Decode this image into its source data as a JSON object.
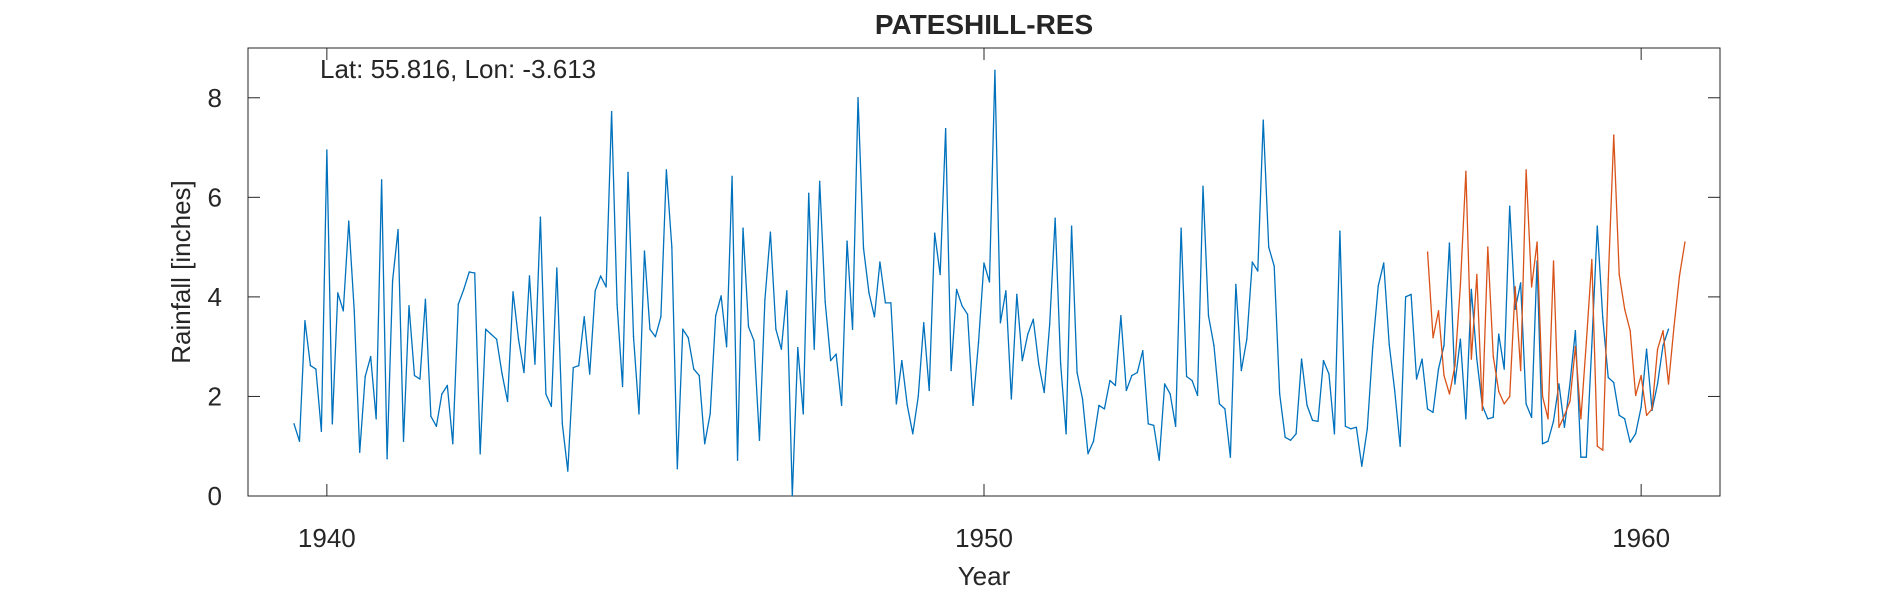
{
  "chart_data": {
    "type": "line",
    "title": "PATESHILL-RES",
    "annotation": "Lat: 55.816, Lon: -3.613",
    "xlabel": "Year",
    "ylabel": "Rainfall [inches]",
    "xlim": [
      1938.8,
      1961.2
    ],
    "ylim": [
      0,
      9.0
    ],
    "xticks": [
      1940,
      1950,
      1960
    ],
    "xtick_labels": [
      "1940",
      "1950",
      "1960"
    ],
    "yticks": [
      0,
      2,
      4,
      6,
      8
    ],
    "ytick_labels": [
      "0",
      "2",
      "4",
      "6",
      "8"
    ],
    "grid": false,
    "legend": "none",
    "series": [
      {
        "color": "#0072BD",
        "x_start": 1939.5,
        "x_step": 0.08333,
        "values": [
          1.45,
          1.1,
          3.52,
          2.62,
          2.55,
          1.3,
          6.95,
          1.45,
          4.08,
          3.72,
          5.52,
          3.72,
          0.88,
          2.4,
          2.8,
          1.55,
          6.35,
          0.75,
          4.32,
          5.35,
          1.1,
          3.82,
          2.42,
          2.35,
          3.95,
          1.6,
          1.4,
          2.05,
          2.22,
          1.05,
          3.85,
          4.15,
          4.5,
          4.48,
          0.85,
          3.35,
          3.25,
          3.15,
          2.45,
          1.9,
          4.1,
          3.15,
          2.48,
          4.42,
          2.65,
          5.6,
          2.05,
          1.8,
          4.58,
          1.45,
          0.5,
          2.58,
          2.62,
          3.6,
          2.45,
          4.12,
          4.42,
          4.2,
          7.72,
          3.85,
          2.2,
          6.5,
          3.2,
          1.65,
          4.92,
          3.35,
          3.2,
          3.6,
          6.55,
          5.0,
          0.55,
          3.35,
          3.18,
          2.55,
          2.42,
          1.05,
          1.65,
          3.62,
          4.02,
          3.0,
          6.42,
          0.72,
          5.38,
          3.4,
          3.12,
          1.12,
          3.95,
          5.3,
          3.35,
          2.95,
          4.12,
          0.0,
          2.98,
          1.65,
          6.08,
          2.95,
          6.32,
          3.9,
          2.72,
          2.85,
          1.82,
          5.12,
          3.35,
          8.0,
          4.98,
          4.08,
          3.6,
          4.7,
          3.88,
          3.88,
          1.85,
          2.72,
          1.82,
          1.25,
          2.0,
          3.48,
          2.12,
          5.28,
          4.45,
          7.38,
          2.52,
          4.15,
          3.82,
          3.65,
          1.82,
          3.08,
          4.68,
          4.3,
          8.55,
          3.48,
          4.12,
          1.95,
          4.05,
          2.72,
          3.25,
          3.55,
          2.65,
          2.08,
          3.45,
          5.58,
          2.65,
          1.25,
          5.42,
          2.48,
          1.95,
          0.85,
          1.1,
          1.82,
          1.75,
          2.32,
          2.22,
          3.62,
          2.12,
          2.42,
          2.48,
          2.92,
          1.45,
          1.42,
          0.72,
          2.25,
          2.05,
          1.4,
          5.38,
          2.4,
          2.32,
          2.02,
          6.22,
          3.62,
          3.02,
          1.85,
          1.75,
          0.78,
          4.25,
          2.52,
          3.15,
          4.7,
          4.52,
          7.55,
          5.0,
          4.62,
          2.05,
          1.18,
          1.12,
          1.25,
          2.75,
          1.82,
          1.52,
          1.5,
          2.72,
          2.45,
          1.25,
          5.32,
          1.4,
          1.35,
          1.38,
          0.6,
          1.35,
          3.0,
          4.22,
          4.68,
          3.05,
          2.12,
          1.0,
          4.0,
          4.05,
          2.35,
          2.75,
          1.75,
          1.68,
          2.55,
          3.02,
          5.08,
          2.25,
          3.15,
          1.55,
          4.15,
          2.75,
          1.82,
          1.55,
          1.58,
          3.25,
          2.55,
          5.82,
          3.75,
          4.28,
          1.85,
          1.58,
          4.72,
          1.05,
          1.1,
          1.5,
          2.25,
          1.38,
          2.25,
          3.32,
          0.78,
          0.78,
          3.02,
          5.42,
          3.58,
          2.38,
          2.28,
          1.62,
          1.55,
          1.08,
          1.25,
          1.78,
          2.95,
          1.72,
          2.25,
          3.02,
          3.35
        ]
      },
      {
        "color": "#D95319",
        "x_start": 1956.75,
        "x_step": 0.08333,
        "values": [
          4.9,
          3.18,
          3.72,
          2.42,
          2.05,
          2.62,
          4.25,
          6.52,
          2.75,
          4.45,
          1.72,
          5.0,
          2.8,
          2.1,
          1.85,
          2.0,
          4.2,
          2.52,
          6.55,
          4.2,
          5.1,
          2.0,
          1.55,
          4.72,
          1.38,
          1.62,
          1.9,
          3.0,
          1.55,
          3.1,
          4.75,
          1.0,
          0.92,
          4.35,
          7.25,
          4.45,
          3.75,
          3.32,
          2.02,
          2.42,
          1.62,
          1.75,
          2.95,
          3.32,
          2.25,
          3.4,
          4.42,
          5.1
        ]
      }
    ]
  }
}
